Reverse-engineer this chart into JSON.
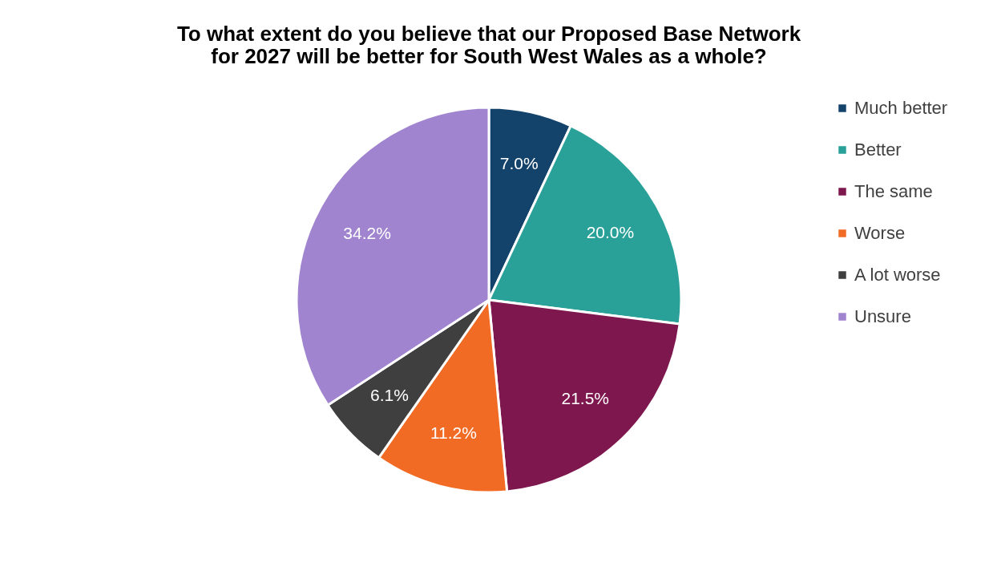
{
  "chart_data": {
    "type": "pie",
    "title": "To what extent do you believe that our Proposed Base Network\nfor 2027 will be better for South West Wales as a whole?",
    "categories": [
      "Much better",
      "Better",
      "The same",
      "Worse",
      "A lot worse",
      "Unsure"
    ],
    "values": [
      7.0,
      20.0,
      21.5,
      11.2,
      6.1,
      34.2
    ],
    "value_labels": [
      "7.0%",
      "20.0%",
      "21.5%",
      "11.2%",
      "6.1%",
      "34.2%"
    ],
    "colors": [
      "#13426b",
      "#2aa198",
      "#7e174e",
      "#f26b25",
      "#3f3f3f",
      "#a084cf"
    ],
    "legend": "right"
  }
}
